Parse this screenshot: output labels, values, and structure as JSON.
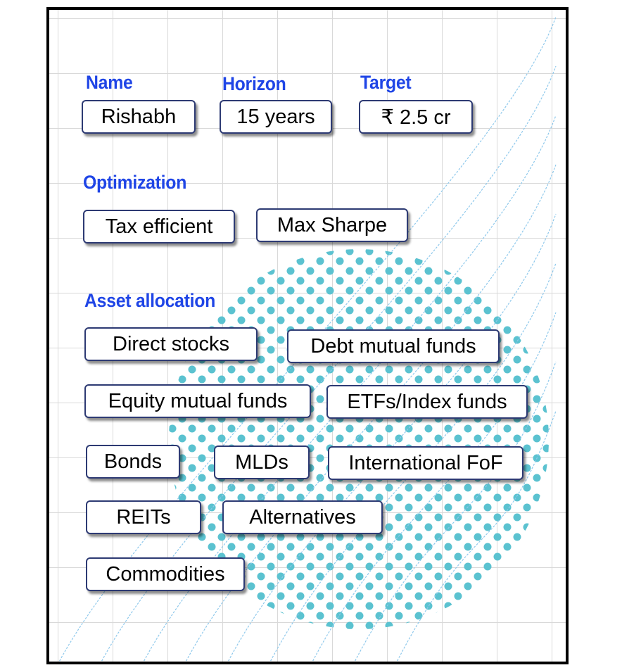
{
  "fields": {
    "name": {
      "label": "Name",
      "value": "Rishabh"
    },
    "horizon": {
      "label": "Horizon",
      "value": "15 years"
    },
    "target": {
      "label": "Target",
      "value": "₹ 2.5 cr"
    }
  },
  "optimization": {
    "label": "Optimization",
    "options": [
      "Tax efficient",
      "Max Sharpe"
    ]
  },
  "asset_allocation": {
    "label": "Asset allocation",
    "options": [
      "Direct stocks",
      "Debt mutual funds",
      "Equity mutual funds",
      "ETFs/Index funds",
      "Bonds",
      "MLDs",
      "International FoF",
      "REITs",
      "Alternatives",
      "Commodities"
    ]
  },
  "colors": {
    "label": "#1f45e6",
    "chip_border": "#2d3a73",
    "dots": "#5bc2d0",
    "grid": "#d9d9d9"
  }
}
